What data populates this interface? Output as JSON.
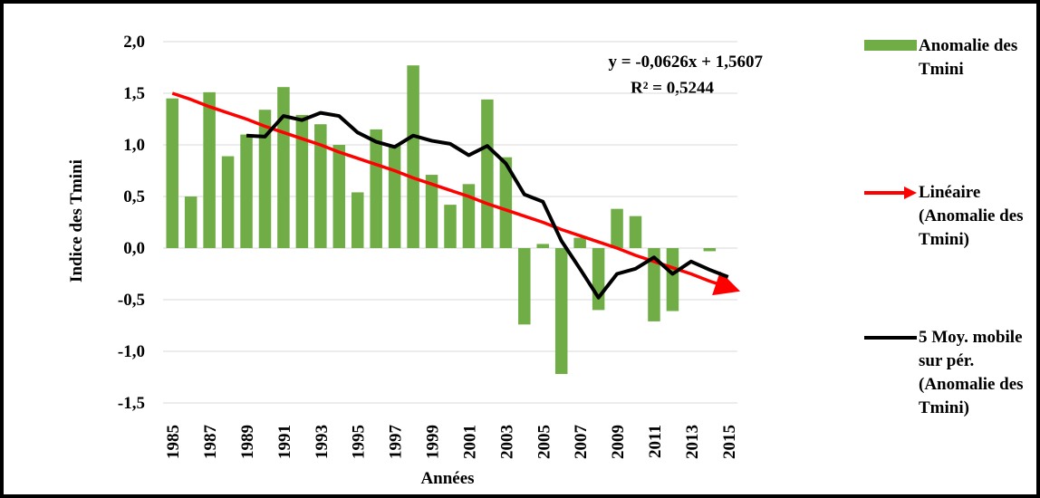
{
  "chart_data": {
    "type": "bar",
    "y_label": "Indice des Tmini",
    "x_label": "Années",
    "equation": "y = -0,0626x + 1,5607",
    "r_squared": "R² = 0,5244",
    "categories": [
      "1985",
      null,
      "1987",
      null,
      "1989",
      null,
      "1991",
      null,
      "1993",
      null,
      "1995",
      null,
      "1997",
      null,
      "1999",
      null,
      "2001",
      null,
      "2003",
      null,
      "2005",
      null,
      "2007",
      null,
      "2009",
      null,
      "2011",
      null,
      "2013",
      null,
      "2015"
    ],
    "series": [
      {
        "name": "Anomalie des Tmini",
        "color": "#70ad47",
        "kind": "bar",
        "values": [
          1.45,
          0.5,
          1.51,
          0.89,
          1.1,
          1.34,
          1.56,
          1.29,
          1.2,
          1.0,
          0.54,
          1.15,
          1.0,
          1.77,
          0.71,
          0.42,
          0.62,
          1.44,
          0.88,
          -0.74,
          0.04,
          -1.22,
          0.1,
          -0.6,
          0.38,
          0.31,
          -0.71,
          -0.61,
          0,
          -0.03,
          0
        ]
      },
      {
        "name": "Linéaire (Anomalie des Tmini)",
        "color": "#ff0000",
        "kind": "trend",
        "values": [
          1.5,
          1.44,
          1.37,
          1.31,
          1.25,
          1.18,
          1.12,
          1.06,
          1.0,
          0.93,
          0.87,
          0.81,
          0.75,
          0.68,
          0.62,
          0.56,
          0.5,
          0.43,
          0.37,
          0.31,
          0.25,
          0.18,
          0.12,
          0.06,
          0,
          -0.07,
          -0.13,
          -0.19,
          -0.25,
          -0.32,
          -0.38
        ]
      },
      {
        "name": "5 Moy. mobile sur pér. (Anomalie des Tmini)",
        "color": "#000000",
        "kind": "line",
        "values": [
          null,
          null,
          null,
          null,
          1.09,
          1.08,
          1.28,
          1.24,
          1.31,
          1.28,
          1.12,
          1.03,
          0.98,
          1.09,
          1.04,
          1.01,
          0.9,
          0.99,
          0.82,
          0.52,
          0.45,
          0.07,
          -0.2,
          -0.48,
          -0.25,
          -0.2,
          -0.09,
          -0.25,
          -0.13,
          -0.21,
          -0.28
        ]
      }
    ],
    "ylim": [
      -1.5,
      2.0
    ],
    "yticks": [
      {
        "value": -1.5,
        "label": "-1,5"
      },
      {
        "value": -1.0,
        "label": "-1,0"
      },
      {
        "value": -0.5,
        "label": "-0,5"
      },
      {
        "value": 0,
        "label": "0,0"
      },
      {
        "value": 0.5,
        "label": "0,5"
      },
      {
        "value": 1.0,
        "label": "1,0"
      },
      {
        "value": 1.5,
        "label": "1,5"
      },
      {
        "value": 2.0,
        "label": "2,0"
      }
    ],
    "grid": true
  }
}
